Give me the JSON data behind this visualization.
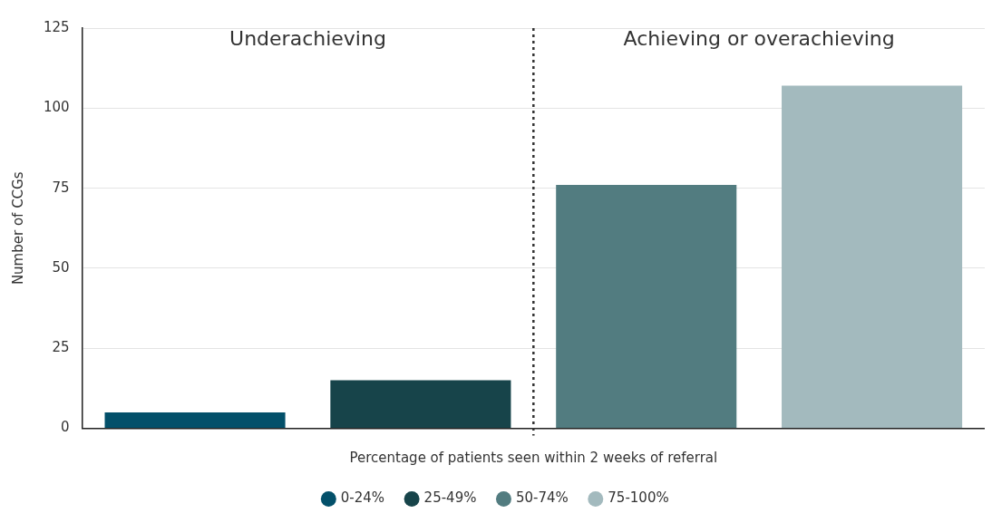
{
  "chart_data": {
    "type": "bar",
    "xlabel": "Percentage of patients seen within 2 weeks of referral",
    "ylabel": "Number of CCGs",
    "categories": [
      null,
      null,
      null,
      null
    ],
    "series": [
      {
        "name": "0-24%",
        "color": "#03506a",
        "values": [
          5,
          null,
          null,
          null
        ]
      },
      {
        "name": "25-49%",
        "color": "#17444a",
        "values": [
          null,
          15,
          null,
          null
        ]
      },
      {
        "name": "50-74%",
        "color": "#527c80",
        "values": [
          null,
          null,
          76,
          null
        ]
      },
      {
        "name": "75-100%",
        "color": "#a3babe",
        "values": [
          null,
          null,
          null,
          107
        ]
      }
    ],
    "ylim": [
      0,
      125
    ],
    "yticks": [
      0,
      25,
      50,
      75,
      100,
      125
    ],
    "grid": "y",
    "legend": "bottom",
    "annotations": [
      "Underachieving",
      "Achieving or overachieving"
    ]
  }
}
